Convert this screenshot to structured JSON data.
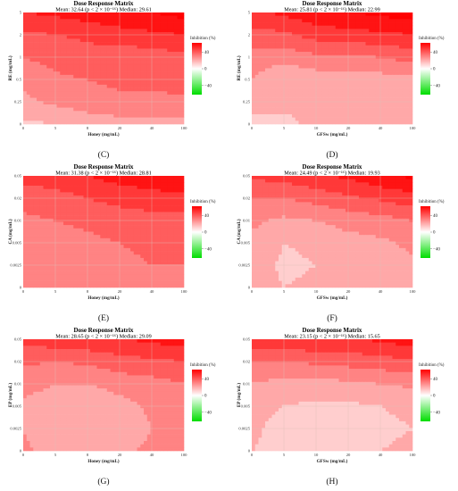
{
  "colors": {
    "low": "#00dd00",
    "mid": "#ffffff",
    "high": "#ff0000",
    "grid": "#e0c0b8"
  },
  "chart_data": [
    {
      "tag": "(C)",
      "type": "heatmap",
      "title": "Dose Response Matrix",
      "subtitle": "Mean: 32.64 (p < 2 × 10⁻¹⁶) Median: 29.61",
      "xlabel": "Honey (mg/mL)",
      "ylabel": "RE (mg/mL)",
      "x_ticks": [
        "0",
        "5",
        "8",
        "20",
        "40",
        "100"
      ],
      "y_ticks": [
        "0",
        "0.25",
        "0.5",
        "1",
        "2",
        "5"
      ],
      "legend_title": "Inhibition (%)",
      "legend_ticks": [
        "40",
        "0",
        "−40"
      ],
      "matrix": [
        [
          8,
          10,
          14,
          16,
          16,
          16
        ],
        [
          18,
          22,
          26,
          28,
          28,
          28
        ],
        [
          22,
          28,
          30,
          32,
          32,
          34
        ],
        [
          30,
          34,
          36,
          34,
          34,
          38
        ],
        [
          38,
          40,
          42,
          46,
          48,
          50
        ],
        [
          50,
          52,
          56,
          58,
          60,
          64
        ]
      ]
    },
    {
      "tag": "(D)",
      "type": "heatmap",
      "title": "Dose Response Matrix",
      "subtitle": "Mean: 25.81 (p < 2 × 10⁻¹⁶)  Median: 22.99",
      "xlabel": "GFSw (mg/mL)",
      "ylabel": "RE (mg/mL)",
      "x_ticks": [
        "0",
        "5",
        "10",
        "20",
        "40",
        "100"
      ],
      "y_ticks": [
        "0",
        "0.25",
        "0.5",
        "1",
        "2",
        "5"
      ],
      "legend_title": "Inhibition (%)",
      "legend_ticks": [
        "40",
        "0",
        "−40"
      ],
      "matrix": [
        [
          6,
          8,
          12,
          14,
          14,
          14
        ],
        [
          14,
          12,
          12,
          12,
          12,
          12
        ],
        [
          20,
          10,
          14,
          16,
          16,
          18
        ],
        [
          26,
          24,
          28,
          28,
          30,
          34
        ],
        [
          36,
          38,
          44,
          46,
          48,
          50
        ],
        [
          48,
          52,
          58,
          60,
          62,
          66
        ]
      ]
    },
    {
      "tag": "(E)",
      "type": "heatmap",
      "title": "Dose Response Matrix",
      "subtitle": "Mean: 31.38 (p < 2 × 10⁻¹⁶) Median: 28.81",
      "xlabel": "Honey (mg/mL)",
      "ylabel": "CA (mg/mL)",
      "x_ticks": [
        "0",
        "5",
        "8",
        "20",
        "40",
        "100"
      ],
      "y_ticks": [
        "0",
        "0.0025",
        "0.005",
        "0.01",
        "0.02",
        "0.05"
      ],
      "legend_title": "Inhibition (%)",
      "legend_ticks": [
        "40",
        "0",
        "−40"
      ],
      "matrix": [
        [
          20,
          22,
          26,
          28,
          28,
          30
        ],
        [
          22,
          24,
          28,
          28,
          30,
          30
        ],
        [
          24,
          26,
          28,
          30,
          32,
          32
        ],
        [
          28,
          30,
          32,
          34,
          36,
          36
        ],
        [
          34,
          36,
          40,
          44,
          46,
          48
        ],
        [
          44,
          46,
          50,
          54,
          56,
          58
        ]
      ]
    },
    {
      "tag": "(F)",
      "type": "heatmap",
      "title": "Dose Response Matrix",
      "subtitle": "Mean: 24.49 (p < 2 × 10⁻¹⁶) Median: 19.93",
      "xlabel": "GFSw (mg/mL)",
      "ylabel": "CA (mg/mL)",
      "x_ticks": [
        "0",
        "5",
        "10",
        "20",
        "40",
        "100"
      ],
      "y_ticks": [
        "0",
        "0.0025",
        "0.005",
        "0.01",
        "0.02",
        "0.05"
      ],
      "legend_title": "Inhibition (%)",
      "legend_ticks": [
        "40",
        "0",
        "−40"
      ],
      "matrix": [
        [
          14,
          10,
          12,
          14,
          16,
          18
        ],
        [
          16,
          8,
          10,
          14,
          16,
          18
        ],
        [
          18,
          10,
          12,
          16,
          18,
          22
        ],
        [
          22,
          18,
          20,
          24,
          26,
          30
        ],
        [
          30,
          30,
          34,
          38,
          42,
          46
        ],
        [
          42,
          44,
          48,
          52,
          58,
          62
        ]
      ]
    },
    {
      "tag": "(G)",
      "type": "heatmap",
      "title": "Dose Response Matrix",
      "subtitle": "Mean: 28.65 (p < 2 × 10⁻¹⁶) Median: 29.09",
      "xlabel": "Honey (mg/mL)",
      "ylabel": "EP (mg/mL)",
      "x_ticks": [
        "0",
        "5",
        "8",
        "20",
        "40",
        "100"
      ],
      "y_ticks": [
        "0",
        "0.0025",
        "0.005",
        "0.01",
        "0.02",
        "0.05"
      ],
      "legend_title": "Inhibition (%)",
      "legend_ticks": [
        "40",
        "0",
        "−40"
      ],
      "matrix": [
        [
          22,
          16,
          14,
          18,
          22,
          26
        ],
        [
          20,
          12,
          10,
          14,
          20,
          24
        ],
        [
          18,
          14,
          12,
          16,
          22,
          26
        ],
        [
          24,
          20,
          20,
          24,
          26,
          30
        ],
        [
          32,
          30,
          32,
          36,
          38,
          40
        ],
        [
          44,
          46,
          48,
          50,
          52,
          56
        ]
      ]
    },
    {
      "tag": "(H)",
      "type": "heatmap",
      "title": "Dose Response Matrix",
      "subtitle": "Mean: 23.15 (p < 2 × 10⁻¹⁶) Median: 15.65",
      "xlabel": "GFSw (mg/mL)",
      "ylabel": "EP (mg/mL)",
      "x_ticks": [
        "0",
        "5",
        "10",
        "20",
        "40",
        "100"
      ],
      "y_ticks": [
        "0",
        "0.0025",
        "0.005",
        "0.01",
        "0.02",
        "0.05"
      ],
      "legend_title": "Inhibition (%)",
      "legend_ticks": [
        "40",
        "0",
        "−40"
      ],
      "matrix": [
        [
          10,
          8,
          8,
          8,
          10,
          12
        ],
        [
          12,
          6,
          6,
          6,
          8,
          10
        ],
        [
          14,
          10,
          8,
          8,
          10,
          12
        ],
        [
          20,
          16,
          16,
          18,
          20,
          22
        ],
        [
          30,
          30,
          32,
          34,
          36,
          38
        ],
        [
          46,
          48,
          50,
          48,
          52,
          56
        ]
      ]
    }
  ]
}
